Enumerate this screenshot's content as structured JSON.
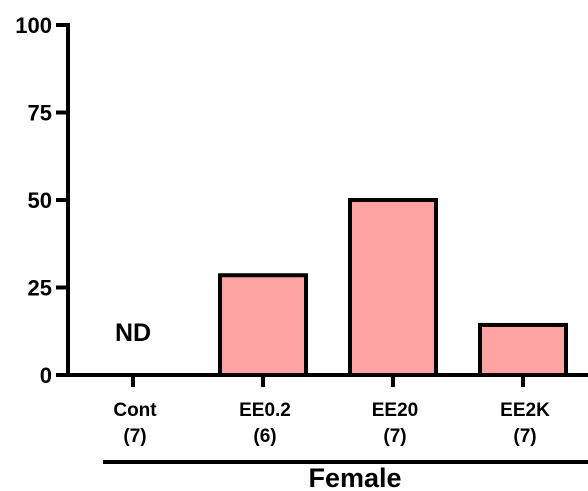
{
  "chart_data": {
    "type": "bar",
    "categories": [
      "Cont",
      "EE0.2",
      "EE20",
      "EE2K"
    ],
    "n_labels": [
      "(7)",
      "(6)",
      "(7)",
      "(7)"
    ],
    "values": [
      0,
      28.5,
      50,
      14.3
    ],
    "bar_annotations": [
      "ND",
      "",
      "",
      ""
    ],
    "yticks": [
      "0",
      "25",
      "50",
      "75",
      "100"
    ],
    "ylim": [
      0,
      100
    ],
    "group_label": "Female",
    "bar_color": "#ffa3a3",
    "edge_color": "#000000",
    "grid": false
  }
}
